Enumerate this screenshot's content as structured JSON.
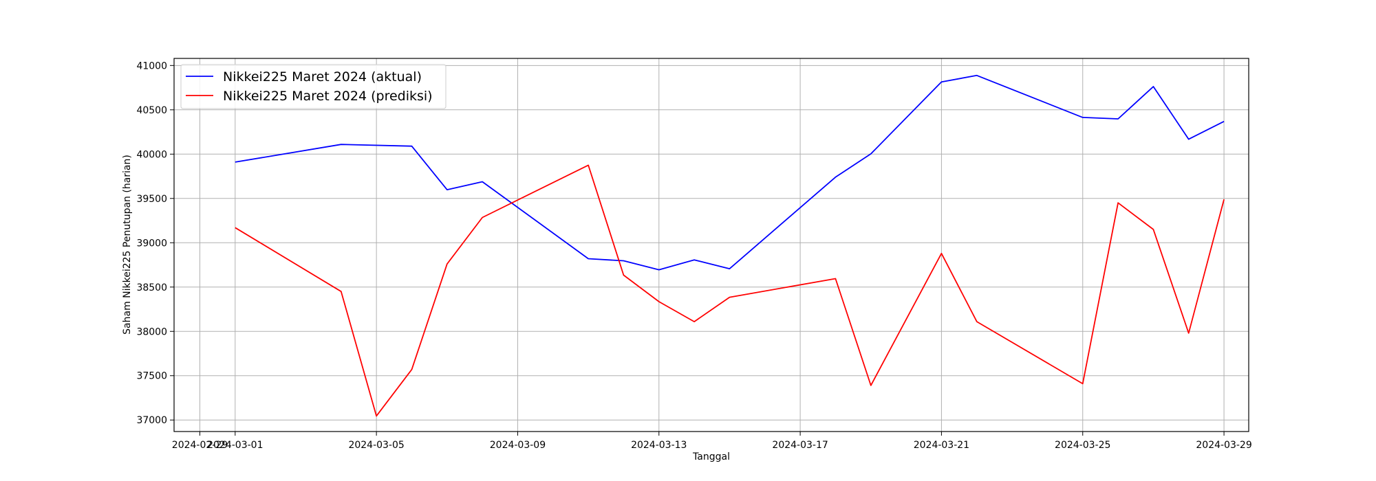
{
  "chart_data": {
    "type": "line",
    "title": "",
    "xlabel": "Tanggal",
    "ylabel": "Saham Nikkei225 Penutupan (harian)",
    "grid": true,
    "legend_position": "top-left",
    "xlim": [
      "2024-02-28",
      "2024-03-30"
    ],
    "ylim": [
      36870,
      41080
    ],
    "x_ticks": [
      "2024-02-29",
      "2024-03-01",
      "2024-03-05",
      "2024-03-09",
      "2024-03-13",
      "2024-03-17",
      "2024-03-21",
      "2024-03-25",
      "2024-03-29"
    ],
    "y_ticks": [
      37000,
      37500,
      38000,
      38500,
      39000,
      39500,
      40000,
      40500,
      41000
    ],
    "series": [
      {
        "name": "Nikkei225 Maret 2024 (aktual)",
        "color": "#0000ff",
        "points": [
          {
            "x": "2024-03-01",
            "y": 39910
          },
          {
            "x": "2024-03-04",
            "y": 40109
          },
          {
            "x": "2024-03-06",
            "y": 40090
          },
          {
            "x": "2024-03-07",
            "y": 39598
          },
          {
            "x": "2024-03-08",
            "y": 39688
          },
          {
            "x": "2024-03-11",
            "y": 38820
          },
          {
            "x": "2024-03-12",
            "y": 38797
          },
          {
            "x": "2024-03-13",
            "y": 38695
          },
          {
            "x": "2024-03-14",
            "y": 38807
          },
          {
            "x": "2024-03-15",
            "y": 38707
          },
          {
            "x": "2024-03-18",
            "y": 39740
          },
          {
            "x": "2024-03-19",
            "y": 40003
          },
          {
            "x": "2024-03-21",
            "y": 40815
          },
          {
            "x": "2024-03-22",
            "y": 40888
          },
          {
            "x": "2024-03-25",
            "y": 40414
          },
          {
            "x": "2024-03-26",
            "y": 40398
          },
          {
            "x": "2024-03-27",
            "y": 40762
          },
          {
            "x": "2024-03-28",
            "y": 40168
          },
          {
            "x": "2024-03-29",
            "y": 40369
          }
        ]
      },
      {
        "name": "Nikkei225 Maret 2024 (prediksi)",
        "color": "#ff0000",
        "points": [
          {
            "x": "2024-03-01",
            "y": 39170
          },
          {
            "x": "2024-03-04",
            "y": 38450
          },
          {
            "x": "2024-03-05",
            "y": 37045
          },
          {
            "x": "2024-03-06",
            "y": 37570
          },
          {
            "x": "2024-03-07",
            "y": 38760
          },
          {
            "x": "2024-03-08",
            "y": 39285
          },
          {
            "x": "2024-03-11",
            "y": 39875
          },
          {
            "x": "2024-03-12",
            "y": 38635
          },
          {
            "x": "2024-03-13",
            "y": 38335
          },
          {
            "x": "2024-03-14",
            "y": 38110
          },
          {
            "x": "2024-03-15",
            "y": 38385
          },
          {
            "x": "2024-03-18",
            "y": 38595
          },
          {
            "x": "2024-03-19",
            "y": 37390
          },
          {
            "x": "2024-03-21",
            "y": 38880
          },
          {
            "x": "2024-03-22",
            "y": 38110
          },
          {
            "x": "2024-03-25",
            "y": 37410
          },
          {
            "x": "2024-03-26",
            "y": 39450
          },
          {
            "x": "2024-03-27",
            "y": 39150
          },
          {
            "x": "2024-03-28",
            "y": 37980
          },
          {
            "x": "2024-03-29",
            "y": 39490
          }
        ]
      }
    ]
  }
}
